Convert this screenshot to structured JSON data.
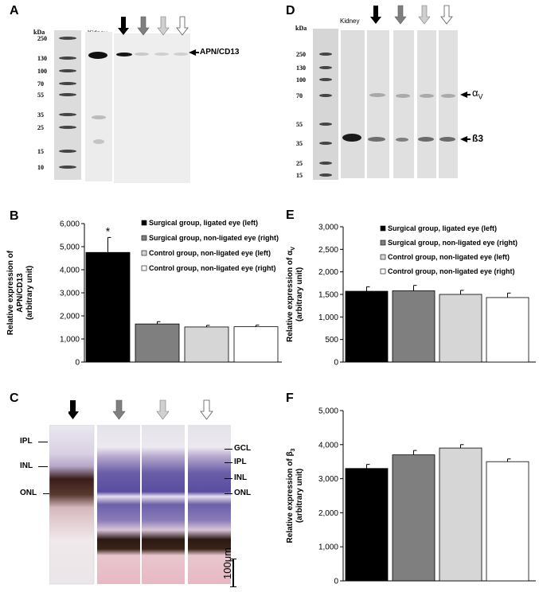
{
  "panels": {
    "A": "A",
    "B": "B",
    "C": "C",
    "D": "D",
    "E": "E",
    "F": "F"
  },
  "colors": {
    "ligated_left": "#000000",
    "nonligated_right": "#7f7f7f",
    "control_left": "#d6d6d6",
    "control_right": "#ffffff"
  },
  "blotA": {
    "kda": "kDa",
    "ladder": [
      "250",
      "130",
      "100",
      "70",
      "55",
      "35",
      "25",
      "15",
      "10"
    ],
    "kidney": "Kidney",
    "band_label": "APN/CD13",
    "lane_arrows": [
      "black-arrow-icon",
      "dark-gray-arrow-icon",
      "light-gray-arrow-icon",
      "white-arrow-icon"
    ]
  },
  "blotD": {
    "kda": "kDa",
    "ladder": [
      "250",
      "130",
      "100",
      "70",
      "55",
      "35",
      "25",
      "15"
    ],
    "kidney": "Kidney",
    "alpha_label": "α",
    "alpha_sub": "V",
    "beta_label": "ß3",
    "lane_arrows": [
      "black-arrow-icon",
      "dark-gray-arrow-icon",
      "light-gray-arrow-icon",
      "white-arrow-icon"
    ]
  },
  "histology": {
    "left_labels": [
      "IPL",
      "INL",
      "ONL"
    ],
    "right_labels": [
      "GCL",
      "IPL",
      "INL",
      "ONL"
    ],
    "scale": "100μm"
  },
  "legend": [
    "Surgical group, ligated eye (left)",
    "Surgical group, non-ligated eye (right)",
    "Control group, non-ligated eye (left)",
    "Control group, non-ligated eye (right)"
  ],
  "chart_data": [
    {
      "type": "bar",
      "panel": "B",
      "ylabel_lines": [
        "Relative expression of",
        "APN/CD13",
        "(arbitrary unit)"
      ],
      "ylim": [
        0,
        6000
      ],
      "yticks": [
        "0",
        "1,000",
        "2,000",
        "3,000",
        "4,000",
        "5,000",
        "6,000"
      ],
      "categories": [
        "Surgical group, ligated eye (left)",
        "Surgical group, non-ligated eye (right)",
        "Control group, non-ligated eye (left)",
        "Control group, non-ligated eye (right)"
      ],
      "values": [
        4750,
        1650,
        1520,
        1530
      ],
      "errors": [
        650,
        100,
        70,
        70
      ],
      "annotations": [
        "*",
        "",
        "",
        ""
      ],
      "legend_placement": "top-right"
    },
    {
      "type": "bar",
      "panel": "E",
      "ylabel_lines": [
        "Relative expression of α",
        "(arbitrary unit)"
      ],
      "ylabel_sub": "V",
      "ylim": [
        0,
        3000
      ],
      "yticks": [
        "0",
        "500",
        "1,000",
        "1,500",
        "2,000",
        "2,500",
        "3,000"
      ],
      "categories": [
        "Surgical group, ligated eye (left)",
        "Surgical group, non-ligated eye (right)",
        "Control group, non-ligated eye (left)",
        "Control group, non-ligated eye (right)"
      ],
      "values": [
        1570,
        1580,
        1500,
        1430
      ],
      "errors": [
        100,
        120,
        90,
        100
      ],
      "legend_placement": "top-right"
    },
    {
      "type": "bar",
      "panel": "F",
      "ylabel_lines": [
        "Relative expression of β",
        "(arbitrary unit)"
      ],
      "ylabel_sub": "3",
      "ylim": [
        0,
        5000
      ],
      "yticks": [
        "0",
        "1,000",
        "2,000",
        "3,000",
        "4,000",
        "5,000"
      ],
      "categories": [
        "Surgical group, ligated eye (left)",
        "Surgical group, non-ligated eye (right)",
        "Control group, non-ligated eye (left)",
        "Control group, non-ligated eye (right)"
      ],
      "values": [
        3300,
        3700,
        3900,
        3500
      ],
      "errors": [
        120,
        130,
        100,
        80
      ]
    }
  ]
}
